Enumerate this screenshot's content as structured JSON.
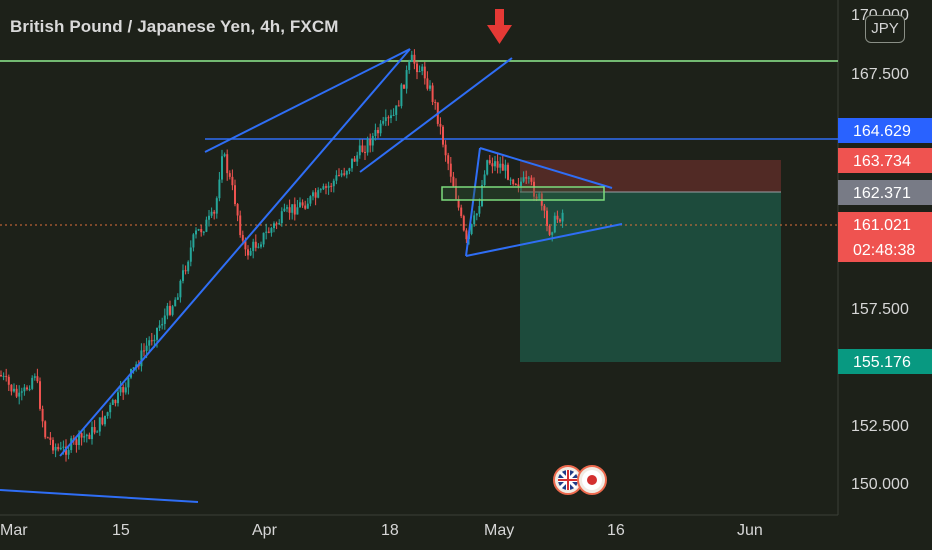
{
  "header": {
    "symbol_title": "British Pound / Japanese Yen, 4h, FXCM",
    "currency_badge": "JPY"
  },
  "colors": {
    "background": "#1d2119",
    "candle_up": "#26a69a",
    "candle_down": "#ef5350",
    "trend_line": "#2f6ef5",
    "horizontal_level": "#90ee90",
    "stop_zone": "#5b2c28",
    "target_zone": "#1e5a48",
    "marker_arrow": "#e53935"
  },
  "price_axis": {
    "ticks": [
      "170.000",
      "167.500",
      "157.500",
      "152.500",
      "150.000"
    ],
    "tick_values": [
      170.0,
      167.5,
      157.5,
      152.5,
      150.0
    ]
  },
  "time_axis": {
    "ticks": [
      "Mar",
      "15",
      "Apr",
      "18",
      "May",
      "16",
      "Jun"
    ]
  },
  "price_tags": [
    {
      "name": "level-line",
      "text": "164.629",
      "color": "#2962ff",
      "text_color": "#ffffff"
    },
    {
      "name": "stop-loss",
      "text": "163.734",
      "color": "#ef5350",
      "text_color": "#ffffff"
    },
    {
      "name": "entry",
      "text": "162.371",
      "color": "#787b86",
      "text_color": "#ffffff"
    },
    {
      "name": "last-price",
      "text": "161.021",
      "color": "#ef5350",
      "text_color": "#ffffff"
    },
    {
      "name": "countdown",
      "text": "02:48:38",
      "color": "#ef5350",
      "text_color": "#ffffff"
    },
    {
      "name": "take-profit",
      "text": "155.176",
      "color": "#089981",
      "text_color": "#ffffff"
    }
  ],
  "event_icons": [
    "uk-flag-icon",
    "japan-flag-icon"
  ]
}
